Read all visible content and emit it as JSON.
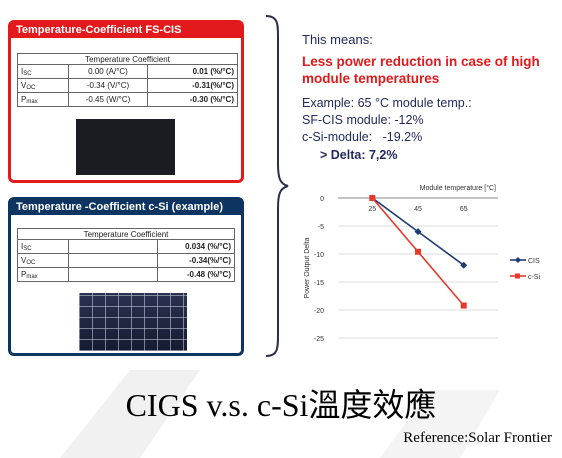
{
  "cis_card": {
    "header": "Temperature-Coefficient FS-CIS",
    "table_title": "Temperature Coefficient",
    "rows": [
      {
        "param": "I",
        "sub": "SC",
        "abs": "0.00 (A/°C)",
        "rel": "0.01 (%/°C)"
      },
      {
        "param": "V",
        "sub": "OC",
        "abs": "-0.34 (V/°C)",
        "rel": "-0.31(%/°C)"
      },
      {
        "param": "P",
        "sub": "max",
        "abs": "-0.45 (W/°C)",
        "rel": "-0.30 (%/°C)"
      }
    ]
  },
  "csi_card": {
    "header": "Temperature -Coefficient c-Si (example)",
    "table_title": "Temperature Coefficient",
    "rows": [
      {
        "param": "I",
        "sub": "SC",
        "abs": "",
        "rel": "0.034 (%/°C)"
      },
      {
        "param": "V",
        "sub": "OC",
        "abs": "",
        "rel": "-0.34(%/°C)"
      },
      {
        "param": "P",
        "sub": "max",
        "abs": "",
        "rel": "-0.48 (%/°C)"
      }
    ]
  },
  "summary": {
    "means": "This means:",
    "headline": "Less power reduction in case of high module temperatures",
    "example": "Example: 65 °C module temp.:",
    "cis_line": "SF-CIS module: -12%",
    "csi_line": "c-Si-module:   -19.2%",
    "delta": "> Delta: 7,2%"
  },
  "chart_data": {
    "type": "line",
    "xlabel": "Module temperature [°C]",
    "ylabel": "Power Output Delta",
    "x": [
      25,
      45,
      65
    ],
    "xlim": [
      10,
      80
    ],
    "ylim": [
      -25,
      0
    ],
    "yticks": [
      0,
      -5,
      -10,
      -15,
      -20,
      -25
    ],
    "grid": true,
    "legend_position": "right",
    "series": [
      {
        "name": "CIS",
        "values": [
          0,
          -6,
          -12
        ],
        "color": "#1f3b73",
        "marker": "diamond"
      },
      {
        "name": "c-Si",
        "values": [
          0,
          -9.6,
          -19.2
        ],
        "color": "#e8382a",
        "marker": "square"
      }
    ]
  },
  "footer": {
    "title": "CIGS v.s. c-Si溫度效應",
    "reference": "Reference:Solar Frontier"
  }
}
